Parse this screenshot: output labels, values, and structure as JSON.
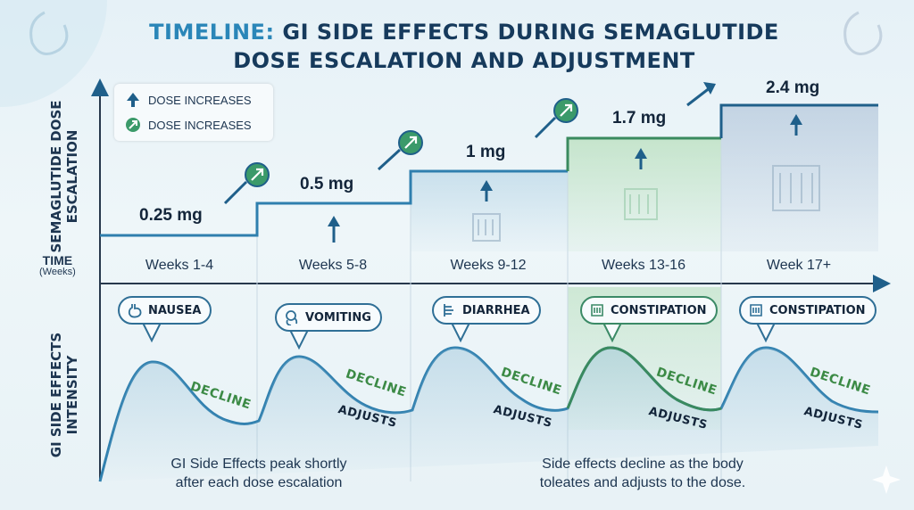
{
  "title": {
    "accent": "TIMELINE:",
    "line1_rest": " GI SIDE EFFECTS DURING SEMAGLUTIDE",
    "line2": "DOSE ESCALATION AND ADJUSTMENT"
  },
  "y_axis_top": "SEMAGLUTIDE DOSE ESCALATION",
  "y_axis_bottom": "GI SIDE EFFECTS INTENSITY",
  "time_axis": {
    "label": "TIME",
    "unit": "(Weeks)"
  },
  "legend": [
    {
      "label": "DOSE INCREASES",
      "icon": "arrow-up-icon",
      "color": "#1f5f8a"
    },
    {
      "label": "DOSE INCREASES",
      "icon": "circle-arrow-icon",
      "color": "#3b9a6a"
    }
  ],
  "periods": [
    {
      "weeks": "Weeks 1-4",
      "dose": "0.25 mg",
      "effect": "NAUSEA",
      "effect_icon": "stomach-icon"
    },
    {
      "weeks": "Weeks 5-8",
      "dose": "0.5 mg",
      "effect": "VOMITING",
      "effect_icon": "vomiting-person-icon"
    },
    {
      "weeks": "Weeks 9-12",
      "dose": "1 mg",
      "effect": "DIARRHEA",
      "effect_icon": "intestine-icon"
    },
    {
      "weeks": "Weeks 13-16",
      "dose": "1.7 mg",
      "effect": "CONSTIPATION",
      "effect_icon": "colon-icon"
    },
    {
      "weeks": "Week 17+",
      "dose": "2.4 mg",
      "effect": "CONSTIPATION",
      "effect_icon": "colon-icon"
    }
  ],
  "curve_labels": {
    "decline": "DECLINE",
    "adjusts": "ADJUSTS"
  },
  "captions": {
    "left": [
      "GI Side Effects peak shortly",
      "after each dose escalation"
    ],
    "right": [
      "Side effects decline as the body",
      "toleates and adjusts to the dose."
    ]
  },
  "colors": {
    "step_line": "#2f7fae",
    "green_step": "#3a8a5f",
    "decline": "#3b8a45",
    "title": "#163a5c"
  }
}
